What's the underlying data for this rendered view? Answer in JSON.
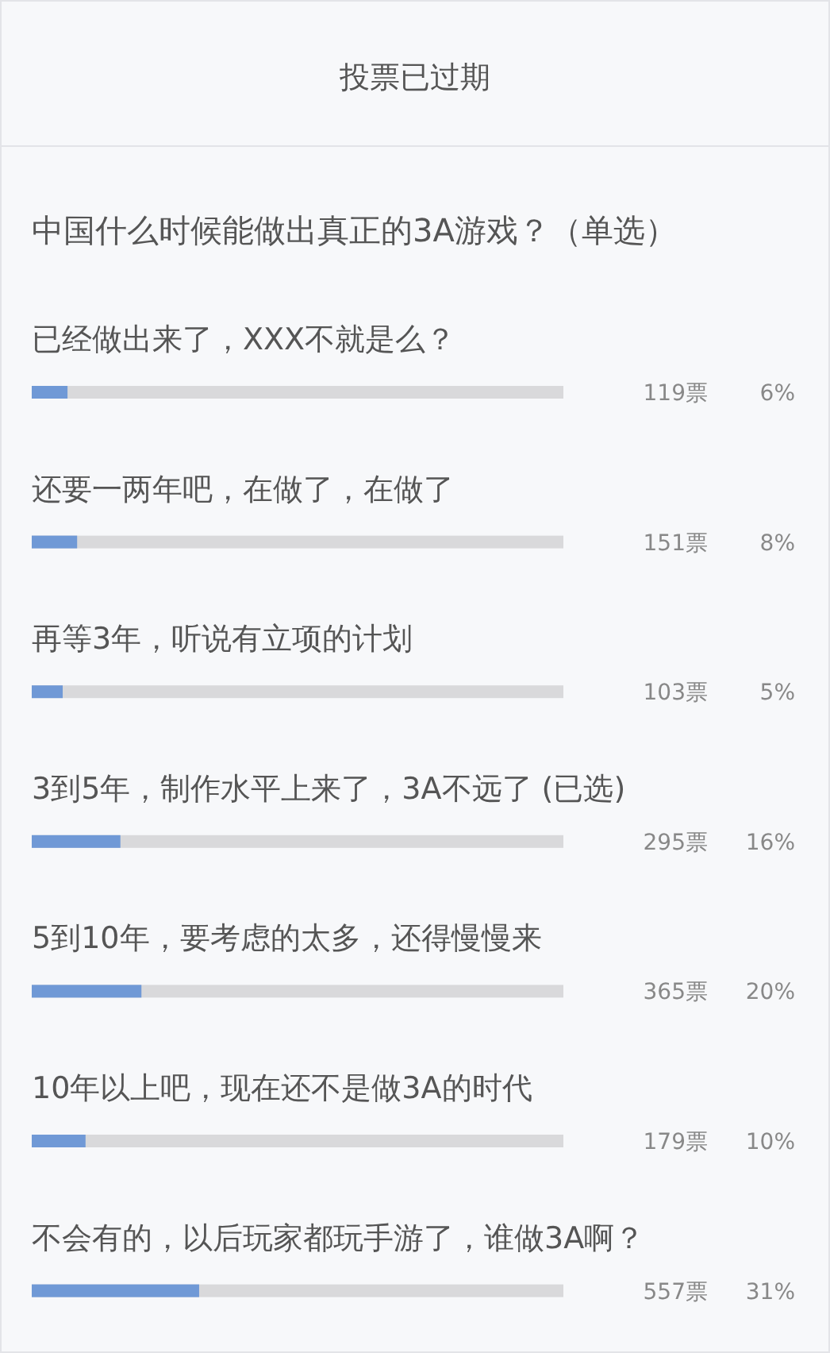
{
  "chart_data": {
    "type": "bar",
    "orientation": "horizontal",
    "title": "投票已过期",
    "subtitle": "中国什么时候能做出真正的3A游戏？（单选）",
    "categories": [
      "已经做出来了，XXX不就是么？",
      "还要一两年吧，在做了，在做了",
      "再等3年，听说有立项的计划",
      "3到5年，制作水平上来了，3A不远了 (已选)",
      "5到10年，要考虑的太多，还得慢慢来",
      "10年以上吧，现在还不是做3A的时代",
      "不会有的，以后玩家都玩手游了，谁做3A啊？"
    ],
    "values": [
      119,
      151,
      103,
      295,
      365,
      179,
      557
    ],
    "value_labels": [
      "119票",
      "151票",
      "103票",
      "295票",
      "365票",
      "179票",
      "557票"
    ],
    "annotations": [
      "6%",
      "8%",
      "5%",
      "16%",
      "20%",
      "10%",
      "31%"
    ],
    "color": "#7099d6",
    "xlim": [
      0,
      1769
    ]
  }
}
